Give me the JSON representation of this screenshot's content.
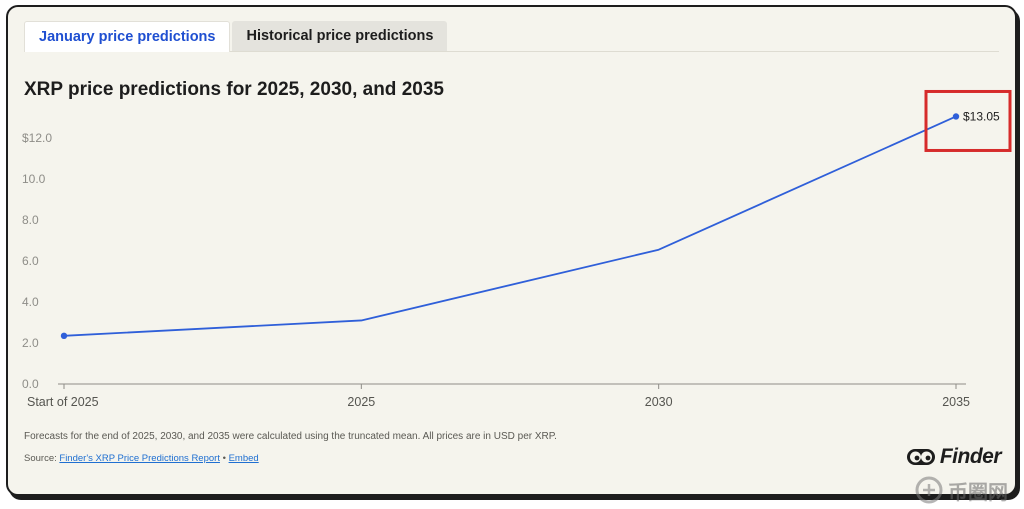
{
  "tabs": [
    {
      "label": "January price predictions",
      "active": true
    },
    {
      "label": "Historical price predictions",
      "active": false
    }
  ],
  "chart_data": {
    "type": "line",
    "title": "XRP price predictions for 2025, 2030, and 2035",
    "categories": [
      "Start of 2025",
      "2025",
      "2030",
      "2035"
    ],
    "series": [
      {
        "values": [
          2.35,
          3.1,
          6.55,
          13.05
        ],
        "color": "#2f5fd9"
      }
    ],
    "ylim": [
      0,
      12.0
    ],
    "yticks": [
      "0.0",
      "2.0",
      "4.0",
      "6.0",
      "8.0",
      "10.0",
      "$12.0"
    ],
    "ytick_values": [
      0,
      2,
      4,
      6,
      8,
      10,
      12
    ],
    "annotations": [
      {
        "index": 3,
        "text": "$13.05",
        "highlighted": true,
        "highlight_color": "#d62b2b"
      }
    ],
    "grid": false,
    "legend": "none"
  },
  "footnote": "Forecasts for the end of 2025, 2030, and 2035 were calculated using the truncated mean. All prices are in USD per XRP.",
  "source": {
    "prefix": "Source: ",
    "link1": "Finder's XRP Price Predictions Report",
    "separator": " • ",
    "link2": "Embed"
  },
  "brand": {
    "name": "Finder"
  },
  "watermark": {
    "text": "币圈网"
  }
}
